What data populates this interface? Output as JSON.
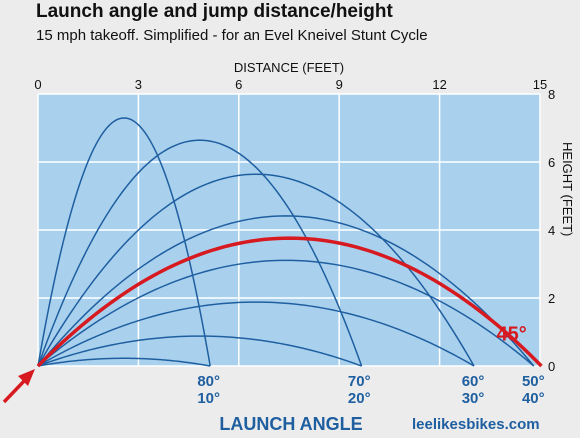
{
  "header": {
    "title": "Launch angle and jump distance/height",
    "subtitle": "15 mph takeoff. Simplified - for an Evel Kneivel Stunt Cycle"
  },
  "chart_data": {
    "type": "line",
    "xlabel": "DISTANCE (FEET)",
    "ylabel": "HEIGHT (FEET)",
    "xlim": [
      0,
      15
    ],
    "ylim": [
      0,
      8
    ],
    "xticks": [
      "0",
      "3",
      "6",
      "9",
      "12",
      "15"
    ],
    "yticks": [
      "0",
      "2",
      "4",
      "6",
      "8"
    ],
    "grid": true,
    "speed_mph": 15,
    "launch_angles_deg": [
      10,
      20,
      30,
      40,
      50,
      60,
      70,
      80
    ],
    "highlight_angle_deg": 45,
    "highlight_color": "#d71920",
    "curve_color": "#1f5fa0",
    "plot_bg": "#a9d1ee",
    "launch_axis_label": "LAUNCH ANGLE",
    "angle_pair_labels": [
      {
        "top": "80°",
        "bottom": "10°",
        "x": 5.1
      },
      {
        "top": "70°",
        "bottom": "20°",
        "x": 9.6
      },
      {
        "top": "60°",
        "bottom": "30°",
        "x": 13.0
      },
      {
        "top": "50°",
        "bottom": "40°",
        "x": 14.8
      }
    ],
    "highlight_label": "45°",
    "credit": "leelikesbikes.com"
  }
}
